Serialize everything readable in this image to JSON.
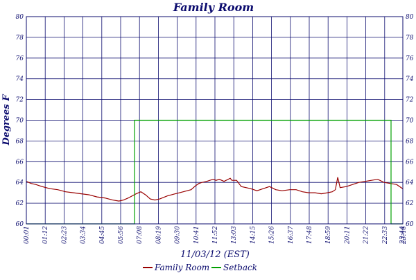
{
  "chart_data": {
    "type": "line",
    "title": "Family Room",
    "xlabel": "11/03/12 (EST)",
    "ylabel": "Degrees F",
    "ylim": [
      60,
      80
    ],
    "yticks": [
      "60",
      "62",
      "64",
      "66",
      "68",
      "70",
      "72",
      "74",
      "76",
      "78",
      "80"
    ],
    "categories": [
      "00:01",
      "01:12",
      "02:23",
      "03:34",
      "04:45",
      "05:56",
      "07:08",
      "08:19",
      "09:30",
      "10:41",
      "11:52",
      "13:03",
      "14:15",
      "15:26",
      "16:37",
      "17:48",
      "18:59",
      "20:11",
      "21:22",
      "22:33",
      "23:44",
      "23:46"
    ],
    "grid": true,
    "legend_position": "bottom-center",
    "series": [
      {
        "name": "Family Room",
        "color": "#990000",
        "x": [
          0,
          0.3,
          0.6,
          1,
          1.5,
          2,
          2.5,
          3,
          3.5,
          4,
          4.5,
          5,
          5.5,
          5.9,
          6.2,
          6.5,
          7.0,
          7.3,
          7.6,
          7.9,
          8.2,
          8.5,
          9.0,
          9.5,
          10.0,
          10.5,
          10.8,
          11.0,
          11.2,
          11.5,
          11.9,
          12.1,
          12.3,
          12.6,
          13.0,
          13.1,
          13.4,
          13.7,
          14.0,
          14.3,
          14.7,
          15.1,
          15.5,
          15.9,
          16.3,
          16.8,
          17.2,
          17.6,
          18.0,
          18.4,
          18.8,
          19.2,
          19.5,
          19.7,
          19.85,
          20.0,
          20.4,
          20.8,
          21.2,
          21.6,
          22.0,
          22.4,
          22.8,
          23.2,
          23.6,
          23.99
        ],
        "values": [
          64.1,
          63.9,
          63.8,
          63.6,
          63.4,
          63.3,
          63.1,
          63.0,
          62.9,
          62.8,
          62.6,
          62.5,
          62.3,
          62.2,
          62.3,
          62.5,
          62.9,
          63.1,
          62.8,
          62.4,
          62.3,
          62.4,
          62.7,
          62.9,
          63.1,
          63.3,
          63.7,
          63.9,
          64.0,
          64.1,
          64.3,
          64.2,
          64.3,
          64.1,
          64.4,
          64.2,
          64.2,
          63.6,
          63.5,
          63.4,
          63.2,
          63.4,
          63.6,
          63.3,
          63.2,
          63.3,
          63.3,
          63.1,
          63.0,
          63.0,
          62.9,
          63.0,
          63.1,
          63.3,
          64.5,
          63.5,
          63.6,
          63.8,
          64.0,
          64.1,
          64.2,
          64.3,
          64.0,
          63.9,
          63.8,
          63.4
        ]
      },
      {
        "name": "Setback",
        "color": "#00a000",
        "x": [
          0,
          6.9,
          6.9,
          23.25,
          23.25,
          23.99
        ],
        "values": [
          60,
          60,
          70,
          70,
          60,
          60
        ]
      }
    ]
  }
}
